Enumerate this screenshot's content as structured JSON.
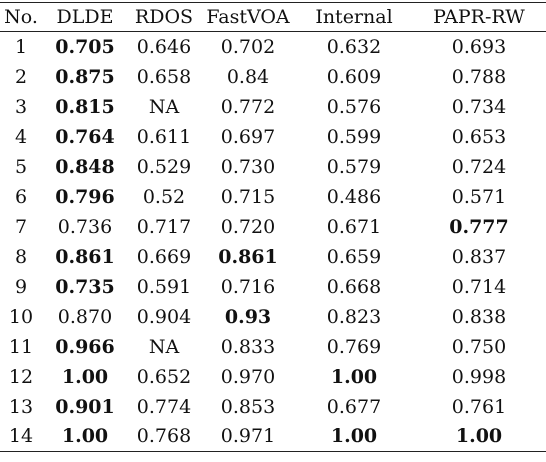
{
  "table": {
    "headers": [
      "No.",
      "DLDE",
      "RDOS",
      "FastVOA",
      "Internal",
      "PAPR-RW"
    ],
    "rows": [
      {
        "cells": [
          "1",
          "0.705",
          "0.646",
          "0.702",
          "0.632",
          "0.693"
        ],
        "bold": [
          1
        ]
      },
      {
        "cells": [
          "2",
          "0.875",
          "0.658",
          "0.84",
          "0.609",
          "0.788"
        ],
        "bold": [
          1
        ]
      },
      {
        "cells": [
          "3",
          "0.815",
          "NA",
          "0.772",
          "0.576",
          "0.734"
        ],
        "bold": [
          1
        ]
      },
      {
        "cells": [
          "4",
          "0.764",
          "0.611",
          "0.697",
          "0.599",
          "0.653"
        ],
        "bold": [
          1
        ]
      },
      {
        "cells": [
          "5",
          "0.848",
          "0.529",
          "0.730",
          "0.579",
          "0.724"
        ],
        "bold": [
          1
        ]
      },
      {
        "cells": [
          "6",
          "0.796",
          "0.52",
          "0.715",
          "0.486",
          "0.571"
        ],
        "bold": [
          1
        ]
      },
      {
        "cells": [
          "7",
          "0.736",
          "0.717",
          "0.720",
          "0.671",
          "0.777"
        ],
        "bold": [
          5
        ]
      },
      {
        "cells": [
          "8",
          "0.861",
          "0.669",
          "0.861",
          "0.659",
          "0.837"
        ],
        "bold": [
          1,
          3
        ]
      },
      {
        "cells": [
          "9",
          "0.735",
          "0.591",
          "0.716",
          "0.668",
          "0.714"
        ],
        "bold": [
          1
        ]
      },
      {
        "cells": [
          "10",
          "0.870",
          "0.904",
          "0.93",
          "0.823",
          "0.838"
        ],
        "bold": [
          3
        ]
      },
      {
        "cells": [
          "11",
          "0.966",
          "NA",
          "0.833",
          "0.769",
          "0.750"
        ],
        "bold": [
          1
        ]
      },
      {
        "cells": [
          "12",
          "1.00",
          "0.652",
          "0.970",
          "1.00",
          "0.998"
        ],
        "bold": [
          1,
          4
        ]
      },
      {
        "cells": [
          "13",
          "0.901",
          "0.774",
          "0.853",
          "0.677",
          "0.761"
        ],
        "bold": [
          1
        ]
      },
      {
        "cells": [
          "14",
          "1.00",
          "0.768",
          "0.971",
          "1.00",
          "1.00"
        ],
        "bold": [
          1,
          4,
          5
        ]
      }
    ]
  }
}
